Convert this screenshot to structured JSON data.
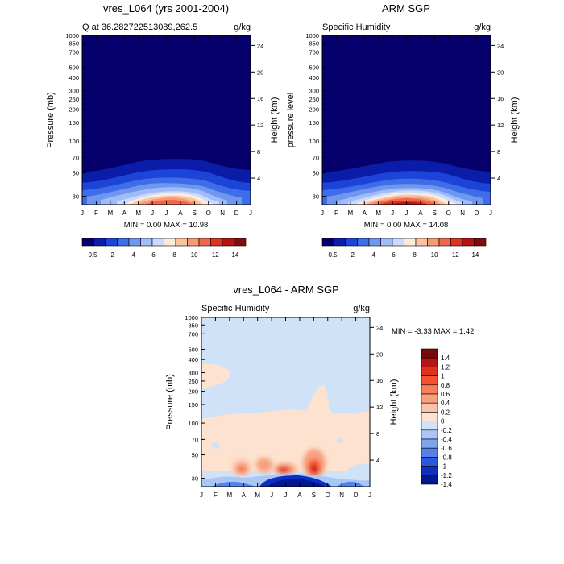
{
  "chart_data": [
    {
      "type": "heatmap",
      "title": "vres_L064 (yrs 2001-2004)",
      "subtitle_left": "Q at 36.282722513089,262.5",
      "subtitle_right": "g/kg",
      "ylabel": "Pressure (mb)",
      "ylabel_right": "Height (km)",
      "months": [
        "J",
        "F",
        "M",
        "A",
        "M",
        "J",
        "J",
        "A",
        "S",
        "O",
        "N",
        "D",
        "J"
      ],
      "pressure_ticks": [
        "30",
        "50",
        "70",
        "100",
        "150",
        "200",
        "250",
        "300",
        "400",
        "500",
        "700",
        "850",
        "1000"
      ],
      "height_ticks": [
        "24",
        "20",
        "16",
        "12",
        "8",
        "4"
      ],
      "ylim_mb": [
        1000,
        25
      ],
      "min_max_text": "MIN =   0.00 MAX =  10.98",
      "min": 0.0,
      "max": 10.98,
      "colorbar_labels": [
        "0.5",
        "2",
        "4",
        "6",
        "8",
        "10",
        "12",
        "14"
      ]
    },
    {
      "type": "heatmap",
      "title": "ARM SGP",
      "subtitle_left": "Specific Humidity",
      "subtitle_right": "g/kg",
      "ylabel": "pressure level",
      "ylabel_right": "Height (km)",
      "months": [
        "J",
        "F",
        "M",
        "A",
        "M",
        "J",
        "J",
        "A",
        "S",
        "O",
        "N",
        "D",
        "J"
      ],
      "pressure_ticks": [
        "30",
        "50",
        "70",
        "100",
        "150",
        "200",
        "250",
        "300",
        "400",
        "500",
        "700",
        "850",
        "1000"
      ],
      "height_ticks": [
        "24",
        "20",
        "16",
        "12",
        "8",
        "4"
      ],
      "ylim_mb": [
        1000,
        25
      ],
      "min_max_text": "MIN =   0.00 MAX =  14.08",
      "min": 0.0,
      "max": 14.08,
      "colorbar_labels": [
        "0.5",
        "2",
        "4",
        "6",
        "8",
        "10",
        "12",
        "14"
      ]
    },
    {
      "type": "heatmap",
      "title": "vres_L064 - ARM SGP",
      "subtitle_left": "Specific Humidity",
      "subtitle_right": "g/kg",
      "ylabel": "Pressure (mb)",
      "ylabel_right": "Height (km)",
      "months": [
        "J",
        "F",
        "M",
        "A",
        "M",
        "J",
        "J",
        "A",
        "S",
        "O",
        "N",
        "D",
        "J"
      ],
      "pressure_ticks": [
        "30",
        "50",
        "70",
        "100",
        "150",
        "200",
        "250",
        "300",
        "400",
        "500",
        "700",
        "850",
        "1000"
      ],
      "height_ticks": [
        "24",
        "20",
        "16",
        "12",
        "8",
        "4"
      ],
      "ylim_mb": [
        1000,
        25
      ],
      "min_max_text": "MIN =  -3.33 MAX =   1.42",
      "min": -3.33,
      "max": 1.42,
      "colorbar_labels": [
        "1.4",
        "1.2",
        "1",
        "0.8",
        "0.6",
        "0.4",
        "0.2",
        "0",
        "-0.2",
        "-0.4",
        "-0.6",
        "-0.8",
        "-1",
        "-1.2",
        "-1.4"
      ]
    }
  ],
  "colors": {
    "seq": [
      "#05006c",
      "#0b1ca8",
      "#1c44d8",
      "#3f6de8",
      "#6f97f0",
      "#9fbcf8",
      "#c9dafb",
      "#fdeadb",
      "#fcc3a3",
      "#f89a75",
      "#f2654a",
      "#dc3220",
      "#b61412",
      "#840b0b"
    ],
    "div": [
      "#7a0a0a",
      "#b81416",
      "#e0301e",
      "#f5532f",
      "#f77f5a",
      "#f8a07e",
      "#fbc4a8",
      "#fde2cf",
      "#cfe2f8",
      "#a9c7f5",
      "#7ea4ef",
      "#5482ea",
      "#2858e0",
      "#0f2fc0",
      "#041690"
    ]
  }
}
